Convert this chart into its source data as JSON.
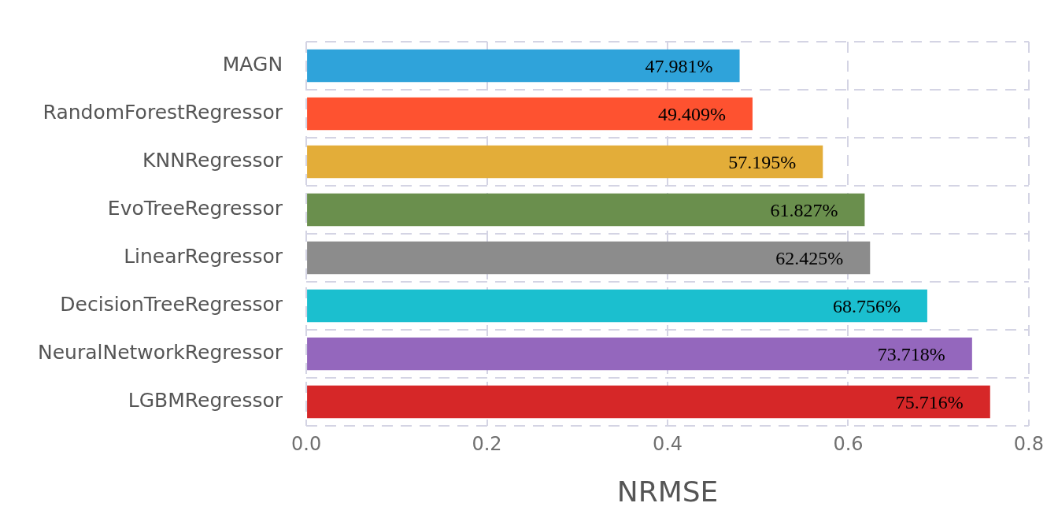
{
  "chart_data": {
    "type": "bar",
    "orientation": "horizontal",
    "xlabel": "NRMSE",
    "categories": [
      "MAGN",
      "RandomForestRegressor",
      "KNNRegressor",
      "EvoTreeRegressor",
      "LinearRegressor",
      "DecisionTreeRegressor",
      "NeuralNetworkRegressor",
      "LGBMRegressor"
    ],
    "values": [
      0.47981,
      0.49409,
      0.57195,
      0.61827,
      0.62425,
      0.68756,
      0.73718,
      0.75716
    ],
    "value_labels": [
      "47.981%",
      "49.409%",
      "57.195%",
      "61.827%",
      "62.425%",
      "68.756%",
      "73.718%",
      "75.716%"
    ],
    "colors": [
      "#2fa3da",
      "#fe5230",
      "#e3ad39",
      "#6a8f4d",
      "#8c8c8c",
      "#1bbfcf",
      "#9467bd",
      "#d62728"
    ],
    "xlim": [
      0,
      0.8
    ],
    "xticks": [
      {
        "value": 0,
        "label": "0.0"
      },
      {
        "value": 0.2,
        "label": "0.2"
      },
      {
        "value": 0.4,
        "label": "0.4"
      },
      {
        "value": 0.6,
        "label": "0.6"
      },
      {
        "value": 0.8,
        "label": "0.8"
      }
    ],
    "grid": true,
    "legend": false
  }
}
